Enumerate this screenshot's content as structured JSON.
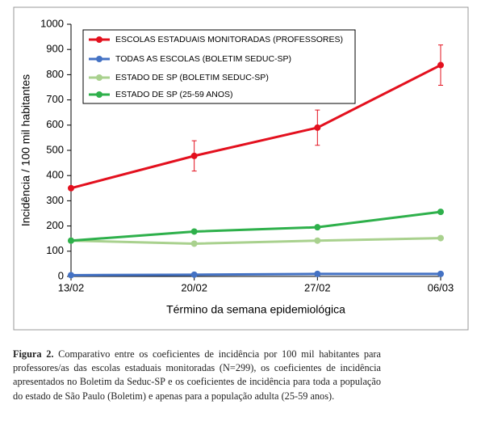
{
  "chart_data": {
    "type": "line",
    "y_label": "Incidência / 100 mil habitantes",
    "x_label": "Término da semana epidemiológica",
    "categories": [
      "13/02",
      "20/02",
      "27/02",
      "06/03"
    ],
    "ylim": [
      0,
      1000
    ],
    "yticks": [
      0,
      100,
      200,
      300,
      400,
      500,
      600,
      700,
      800,
      900,
      1000
    ],
    "legend": "top-left",
    "series": [
      {
        "name": "ESCOLAS ESTADUAIS MONITORADAS (PROFESSORES)",
        "color": "#e3101e",
        "values": [
          350,
          478,
          590,
          838
        ],
        "errors": [
          null,
          60,
          70,
          80
        ]
      },
      {
        "name": "TODAS AS ESCOLAS (BOLETIM SEDUC-SP)",
        "color": "#4472c4",
        "values": [
          5,
          7,
          10,
          10
        ]
      },
      {
        "name": "ESTADO DE SP (BOLETIM SEDUC-SP)",
        "color": "#a9d18e",
        "values": [
          142,
          130,
          142,
          152
        ]
      },
      {
        "name": "ESTADO DE SP (25-59 ANOS)",
        "color": "#2eb04b",
        "values": [
          142,
          178,
          195,
          256
        ]
      }
    ]
  },
  "caption": {
    "label": "Figura 2.",
    "text": "Comparativo entre os coeficientes de incidência por 100 mil habitantes para professores/as das escolas estaduais monitoradas (N=299), os coeficientes de incidência apresentados no Boletim da Seduc-SP e os coeficientes de incidência para toda a população do estado de São Paulo (Boletim) e apenas para a população adulta (25-59 anos)."
  }
}
